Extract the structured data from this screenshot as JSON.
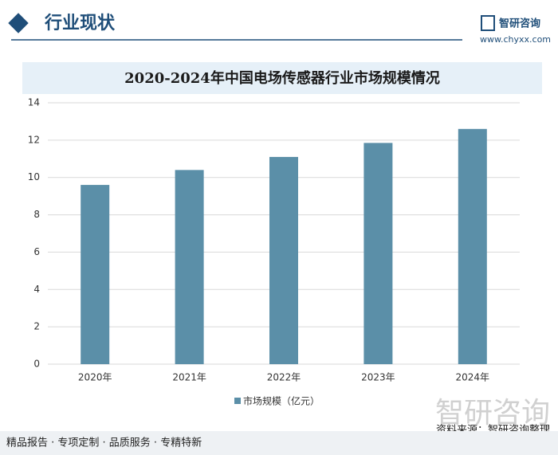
{
  "header": {
    "section": "行业现状",
    "brand": "智研咨询",
    "site": "www.chyxx.com"
  },
  "chart_data": {
    "type": "bar",
    "title": "2020-2024年中国电场传感器行业市场规模情况",
    "categories": [
      "2020年",
      "2021年",
      "2022年",
      "2023年",
      "2024年"
    ],
    "series": [
      {
        "name": "市场规模（亿元）",
        "color": "#5b8fa8",
        "values": [
          9.6,
          10.4,
          11.1,
          11.85,
          12.6
        ]
      }
    ],
    "ylim": [
      0,
      14
    ],
    "yticks": [
      0,
      2,
      4,
      6,
      8,
      10,
      12,
      14
    ],
    "grid": true,
    "legend": "bottom"
  },
  "source": {
    "watermark": "智研咨询",
    "text": "资料来源：智研咨询整理"
  },
  "footer": {
    "text": "精品报告 · 专项定制 · 品质服务 · 专精特新"
  }
}
